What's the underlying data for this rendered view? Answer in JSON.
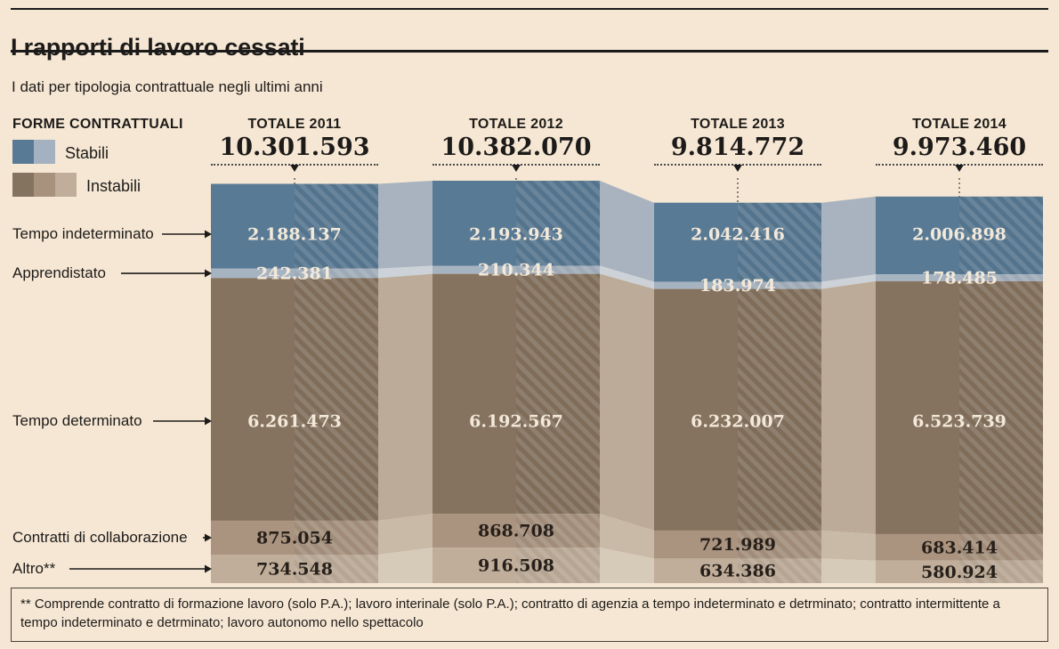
{
  "page": {
    "title": "I rapporti di lavoro cessati",
    "subtitle": "I dati per tipologia contrattuale negli ultimi anni",
    "footnote": "** Comprende contratto di formazione lavoro (solo P.A.); lavoro interinale (solo P.A.); contratto di agenzia a tempo indeterminato e detrminato; contratto intermittente a tempo indeterminato e detrminato; lavoro autonomo nello spettacolo"
  },
  "legend": {
    "heading": "FORME CONTRATTUALI",
    "items": [
      {
        "label": "Stabili",
        "colors": [
          "#587a95",
          "#a3b1c0"
        ]
      },
      {
        "label": "Instabili",
        "colors": [
          "#84735f",
          "#a8927e",
          "#c0ae9a"
        ]
      }
    ]
  },
  "colors": {
    "background": "#f6e7d4",
    "text_dark": "#1d1b19",
    "value_light_text": "#f3e9da",
    "value_dark_text": "#27201a"
  },
  "chart_data": {
    "type": "area",
    "title": "I rapporti di lavoro cessati",
    "subtitle": "I dati per tipologia contrattuale negli ultimi anni",
    "legend_position": "top-left",
    "years": [
      {
        "label": "TOTALE 2011",
        "total": 10301593,
        "total_label": "10.301.593"
      },
      {
        "label": "TOTALE 2012",
        "total": 10382070,
        "total_label": "10.382.070"
      },
      {
        "label": "TOTALE 2013",
        "total": 9814772,
        "total_label": "9.814.772"
      },
      {
        "label": "TOTALE 2014",
        "total": 9973460,
        "total_label": "9.973.460"
      }
    ],
    "categories": [
      {
        "name": "Tempo indeterminato",
        "group": "Stabili",
        "values": [
          2188137,
          2193943,
          2042416,
          2006898
        ],
        "value_labels": [
          "2.188.137",
          "2.193.943",
          "2.042.416",
          "2.006.898"
        ],
        "color": "#587a95",
        "connector_color": "#a9b3bf"
      },
      {
        "name": "Apprendistato",
        "group": "Stabili",
        "values": [
          242381,
          210344,
          183974,
          178485
        ],
        "value_labels": [
          "242.381",
          "210.344",
          "183.974",
          "178.485"
        ],
        "color": "#a6b3c1",
        "connector_color": "#ccd2d7"
      },
      {
        "name": "Tempo determinato",
        "group": "Instabili",
        "values": [
          6261473,
          6192567,
          6232007,
          6523739
        ],
        "value_labels": [
          "6.261.473",
          "6.192.567",
          "6.232.007",
          "6.523.739"
        ],
        "color": "#86735f",
        "connector_color": "#bcab98"
      },
      {
        "name": "Contratti di collaborazione",
        "group": "Instabili",
        "values": [
          875054,
          868708,
          721989,
          683414
        ],
        "value_labels": [
          "875.054",
          "868.708",
          "721.989",
          "683.414"
        ],
        "color": "#aa9480",
        "connector_color": "#c9baa8"
      },
      {
        "name": "Altro**",
        "group": "Instabili",
        "values": [
          734548,
          916508,
          634386,
          580924
        ],
        "value_labels": [
          "734.548",
          "916.508",
          "634.386",
          "580.924"
        ],
        "color": "#c0ae9a",
        "connector_color": "#d6cab9"
      }
    ]
  }
}
